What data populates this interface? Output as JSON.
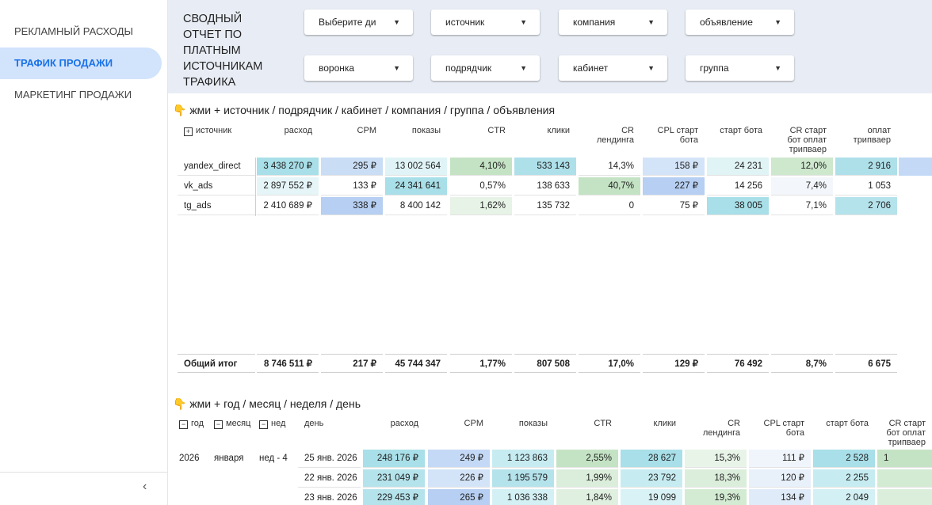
{
  "sidebar": {
    "items": [
      "РЕКЛАМНЫЙ РАСХОДЫ",
      "ТРАФИК ПРОДАЖИ",
      "МАРКЕТИНГ ПРОДАЖИ"
    ]
  },
  "header": {
    "title": "СВОДНЫЙ\nОТЧЕТ ПО\nПЛАТНЫМ\nИСТОЧНИКАМ\nТРАФИКА",
    "filters": [
      [
        "Выберите ди",
        "источник",
        "компания",
        "объявление"
      ],
      [
        "воронка",
        "подрядчик",
        "кабинет",
        "группа"
      ]
    ]
  },
  "table1": {
    "heading": "👇 жми + источник / подрядчик / кабинет / компания / группа / объявления",
    "columns": [
      "источник",
      "расход",
      "CPM",
      "показы",
      "CTR",
      "клики",
      "CR\nлендинга",
      "CPL старт\nбота",
      "старт бота",
      "CR старт\nбот оплат\nтрипваер",
      "оплат\nтрипваер"
    ],
    "rows": [
      [
        "yandex_direct",
        "3 438 270 ₽",
        "295 ₽",
        "13 002 564",
        "4,10%",
        "533 143",
        "14,3%",
        "158 ₽",
        "24 231",
        "12,0%",
        "2 916"
      ],
      [
        "vk_ads",
        "2 897 552 ₽",
        "133 ₽",
        "24 341 641",
        "0,57%",
        "138 633",
        "40,7%",
        "227 ₽",
        "14 256",
        "7,4%",
        "1 053"
      ],
      [
        "tg_ads",
        "2 410 689 ₽",
        "338 ₽",
        "8 400 142",
        "1,62%",
        "135 732",
        "0",
        "75 ₽",
        "38 005",
        "7,1%",
        "2 706"
      ]
    ],
    "total": [
      "Общий итог",
      "8 746 511 ₽",
      "217 ₽",
      "45 744 347",
      "1,77%",
      "807 508",
      "17,0%",
      "129 ₽",
      "76 492",
      "8,7%",
      "6 675"
    ]
  },
  "table2": {
    "heading": "👇 жми + год / месяц / неделя / день",
    "columns": [
      "год",
      "месяц",
      "нед",
      "день",
      "расход",
      "CPM",
      "показы",
      "CTR",
      "клики",
      "CR\nлендинга",
      "CPL старт\nбота",
      "старт бота",
      "CR старт\nбот оплат\nтрипваер"
    ],
    "rows": [
      [
        "2026",
        "января",
        "нед - 4",
        "25 янв. 2026",
        "248 176 ₽",
        "249 ₽",
        "1 123 863",
        "2,55%",
        "28 627",
        "15,3%",
        "111 ₽",
        "2 528",
        "1"
      ],
      [
        null,
        null,
        null,
        "22 янв. 2026",
        "231 049 ₽",
        "226 ₽",
        "1 195 579",
        "1,99%",
        "23 792",
        "18,3%",
        "120 ₽",
        "2 255",
        null
      ],
      [
        null,
        null,
        null,
        "23 янв. 2026",
        "229 453 ₽",
        "265 ₽",
        "1 036 338",
        "1,84%",
        "19 099",
        "19,3%",
        "134 ₽",
        "2 049",
        null
      ]
    ]
  }
}
